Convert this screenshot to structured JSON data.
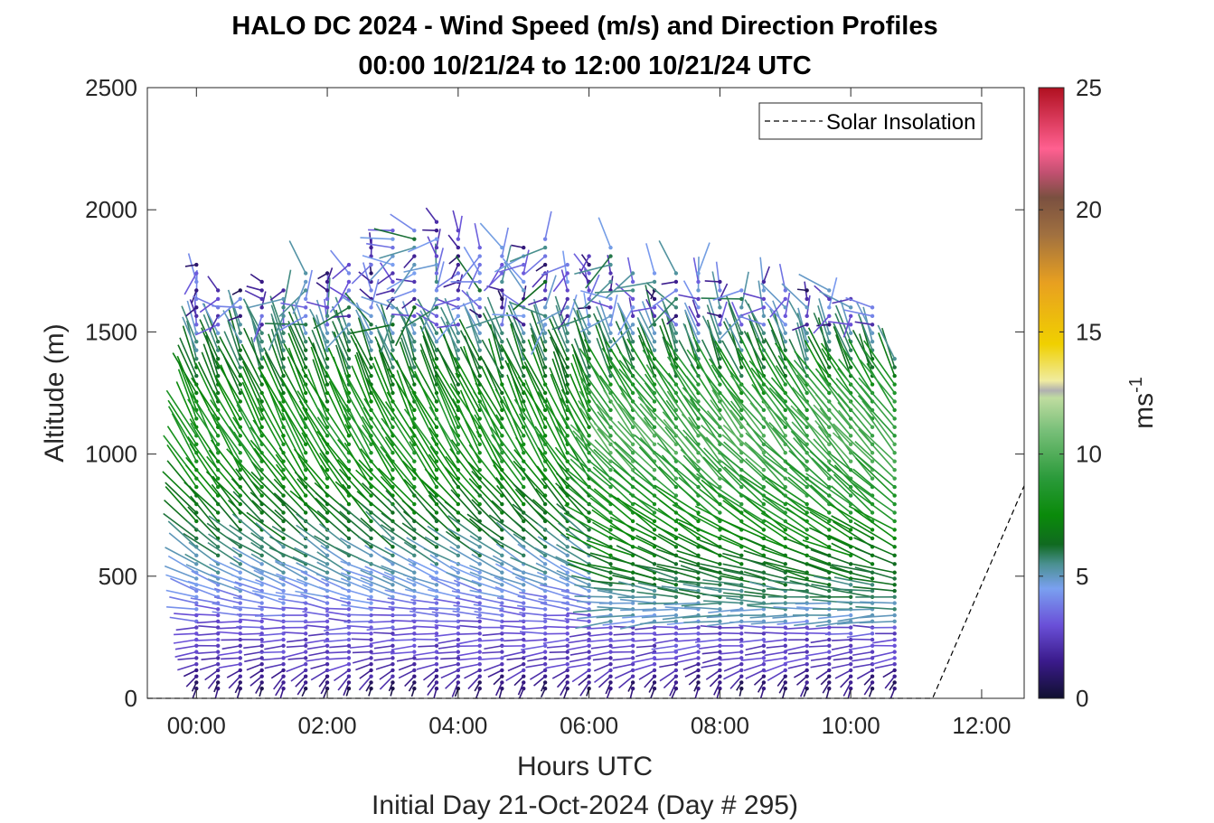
{
  "chart_data": {
    "type": "quiver",
    "title": "HALO DC 2024 - Wind Speed (m/s) and Direction Profiles",
    "subtitle": "00:00 10/21/24 to 12:00 10/21/24  UTC",
    "xlabel": "Hours UTC",
    "xlabel2": "Initial Day 21-Oct-2024 (Day # 295)",
    "ylabel": "Altitude (m)",
    "xlim": [
      -0.75,
      12.65
    ],
    "ylim": [
      0,
      2500
    ],
    "xticks": [
      0,
      2,
      4,
      6,
      8,
      10,
      12
    ],
    "xtick_labels": [
      "00:00",
      "02:00",
      "04:00",
      "06:00",
      "08:00",
      "10:00",
      "12:00"
    ],
    "yticks": [
      0,
      500,
      1000,
      1500,
      2000,
      2500
    ],
    "ytick_labels": [
      "0",
      "500",
      "1000",
      "1500",
      "2000",
      "2500"
    ],
    "grid": false,
    "legend": {
      "position": "top-right",
      "entries": [
        "Solar Insolation"
      ]
    },
    "colorbar": {
      "label_base": "ms",
      "label_exp": "-1",
      "range": [
        0,
        25
      ],
      "ticks": [
        0,
        5,
        10,
        15,
        20,
        25
      ],
      "tick_labels": [
        "0",
        "5",
        "10",
        "15",
        "20",
        "25"
      ],
      "stops": [
        [
          0,
          "#101030"
        ],
        [
          1.5,
          "#3a1a8a"
        ],
        [
          3,
          "#6a50d8"
        ],
        [
          4.5,
          "#7aa0f0"
        ],
        [
          5.5,
          "#4a9090"
        ],
        [
          6.3,
          "#106a20"
        ],
        [
          7.5,
          "#0a8a0a"
        ],
        [
          9,
          "#2a9a3a"
        ],
        [
          11,
          "#7ac07a"
        ],
        [
          12.3,
          "#bfdca0"
        ],
        [
          12.6,
          "#b0b0b0"
        ],
        [
          13,
          "#f0eca0"
        ],
        [
          14.5,
          "#f0d000"
        ],
        [
          17,
          "#e8a020"
        ],
        [
          19,
          "#a07040"
        ],
        [
          20.5,
          "#7a5040"
        ],
        [
          21.5,
          "#c05070"
        ],
        [
          22.5,
          "#ff6090"
        ],
        [
          25,
          "#b01020"
        ]
      ]
    },
    "profile_times_hours": [
      0,
      0.33,
      0.67,
      1,
      1.33,
      1.67,
      2,
      2.33,
      2.67,
      3,
      3.33,
      3.67,
      4,
      4.33,
      4.67,
      5,
      5.33,
      5.67,
      6,
      6.33,
      6.67,
      7,
      7.33,
      7.67,
      8,
      8.33,
      8.67,
      9,
      9.33,
      9.67,
      10,
      10.33,
      10.67
    ],
    "profile_top_altitudes_m": [
      1800,
      1700,
      1700,
      1720,
      1680,
      1740,
      1760,
      1780,
      1860,
      1930,
      1940,
      1960,
      1940,
      1860,
      1870,
      1860,
      1880,
      1800,
      1820,
      1860,
      1760,
      1760,
      1740,
      1740,
      1720,
      1700,
      1720,
      1700,
      1700,
      1680,
      1640,
      1620,
      1420
    ],
    "wind_profile_by_altitude": [
      {
        "altitude_m": 50,
        "speed_ms": 1.0,
        "direction_deg": 200
      },
      {
        "altitude_m": 150,
        "speed_ms": 2.5,
        "direction_deg": 260
      },
      {
        "altitude_m": 300,
        "speed_ms": 3.0,
        "direction_deg": 270
      },
      {
        "altitude_m": 450,
        "speed_ms": 4.5,
        "direction_deg": 290
      },
      {
        "altitude_m": 700,
        "speed_ms": 6.5,
        "direction_deg": 315
      },
      {
        "altitude_m": 1000,
        "speed_ms": 8.5,
        "direction_deg": 330
      },
      {
        "altitude_m": 1400,
        "speed_ms": 6.0,
        "direction_deg": 340
      },
      {
        "altitude_m": 1800,
        "speed_ms": 3.0,
        "direction_deg": 330
      }
    ],
    "series": [
      {
        "name": "Solar Insolation",
        "x": [
          -0.75,
          11.25,
          12.65
        ],
        "y": [
          0,
          0,
          870
        ]
      }
    ]
  }
}
